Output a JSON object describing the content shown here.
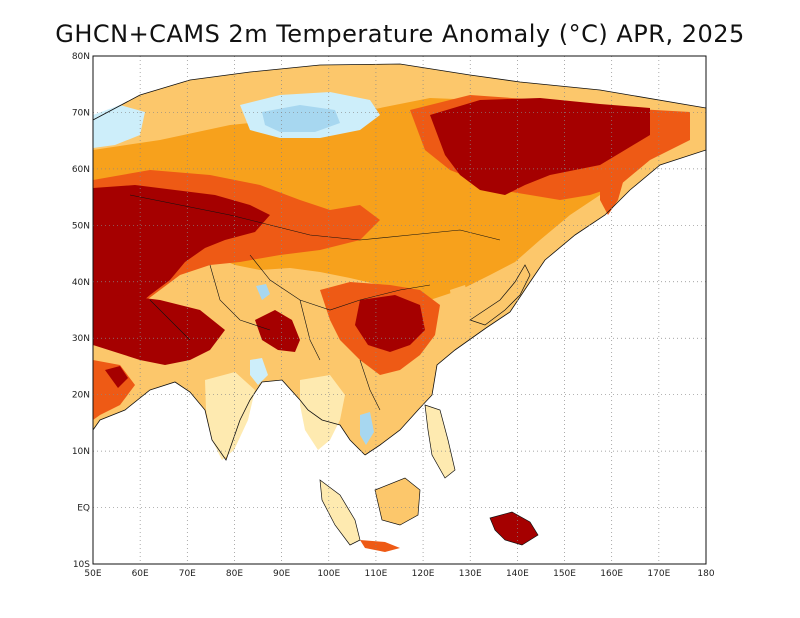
{
  "title": "GHCN+CAMS 2m Temperature Anomaly (°C) APR, 2025",
  "axes": {
    "lon_ticks": [
      "50E",
      "60E",
      "70E",
      "80E",
      "90E",
      "100E",
      "110E",
      "120E",
      "130E",
      "140E",
      "150E",
      "160E",
      "170E",
      "180"
    ],
    "lat_ticks": [
      "80N",
      "70N",
      "60N",
      "50N",
      "40N",
      "30N",
      "20N",
      "10N",
      "EQ",
      "10S"
    ]
  },
  "map": {
    "lon_range": [
      50,
      180
    ],
    "lat_range": [
      -10,
      80
    ],
    "grid": "dotted",
    "colors": {
      "strong_warm": "#a50000",
      "warm_red": "#dc2a12",
      "warm_orange_red": "#ee5a15",
      "warm_orange": "#f7a11c",
      "warm_yellow_orange": "#fcc76b",
      "warm_pale": "#feeab0",
      "cool_pale": "#cdeefa",
      "cool_blue": "#a7d7f0",
      "coastline": "#111111",
      "ocean": "#ffffff"
    }
  }
}
